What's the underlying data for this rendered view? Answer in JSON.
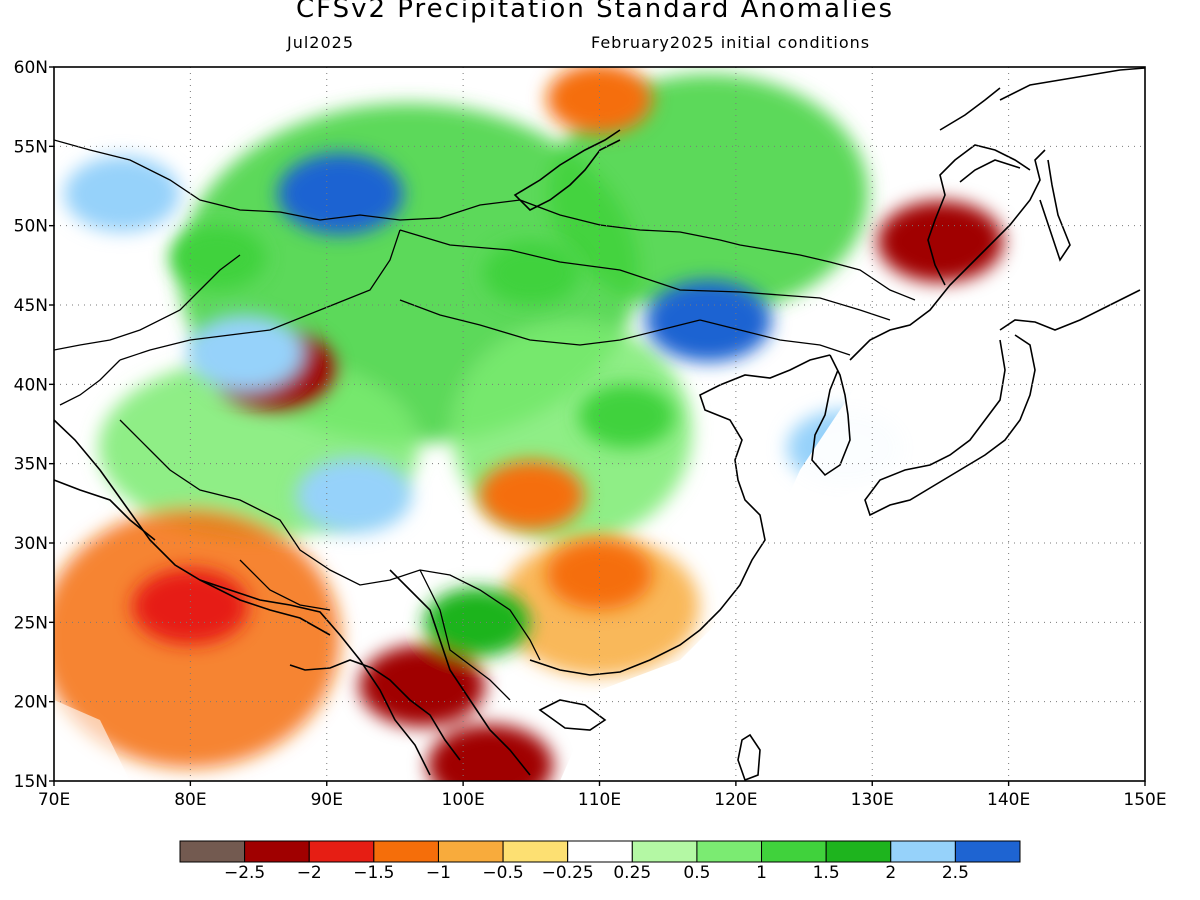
{
  "title": "CFSv2 Precipitation Standard Anomalies",
  "valid_month": "Jul2025",
  "initial_conditions": "February2025 initial conditions",
  "map": {
    "lon_ticks": [
      "70E",
      "80E",
      "90E",
      "100E",
      "110E",
      "120E",
      "130E",
      "140E",
      "150E"
    ],
    "lat_ticks": [
      "15N",
      "20N",
      "25N",
      "30N",
      "35N",
      "40N",
      "45N",
      "50N",
      "55N",
      "60N"
    ],
    "lon_range": [
      70,
      150
    ],
    "lat_range": [
      15,
      60
    ],
    "grid": "dotted"
  },
  "colorbar": {
    "labels": [
      "−2.5",
      "−2",
      "−1.5",
      "−1",
      "−0.5",
      "−0.25",
      "0.25",
      "0.5",
      "1",
      "1.5",
      "2",
      "2.5"
    ],
    "colors": [
      "#735a50",
      "#a00000",
      "#e61e14",
      "#f56e0a",
      "#f8ab3c",
      "#fde072",
      "#ffffff",
      "#b4f8a4",
      "#7beb72",
      "#40d23c",
      "#1eb41e",
      "#96d2fa",
      "#1e64d2"
    ]
  },
  "anomaly_regions": [
    {
      "name": "north-india-dry",
      "lon": 80,
      "lat": 26,
      "value": -2.0
    },
    {
      "name": "myanmar-dry",
      "lon": 97,
      "lat": 21,
      "value": -2.5
    },
    {
      "name": "indochina-dry",
      "lon": 102,
      "lat": 16,
      "value": -2.5
    },
    {
      "name": "south-china-dry",
      "lon": 110,
      "lat": 28,
      "value": -1.5
    },
    {
      "name": "sichuan-dry",
      "lon": 105,
      "lat": 33,
      "value": -1.5
    },
    {
      "name": "tarim-dry",
      "lon": 86,
      "lat": 41,
      "value": -2.5
    },
    {
      "name": "baikal-dry",
      "lon": 110,
      "lat": 58,
      "value": -1.5
    },
    {
      "name": "manchuria-dry",
      "lon": 135,
      "lat": 49,
      "value": -2.5
    },
    {
      "name": "mongolia-northeast-wet",
      "lon": 118,
      "lat": 44,
      "value": 2.5
    },
    {
      "name": "west-siberia-wet",
      "lon": 75,
      "lat": 52,
      "value": 2.0
    },
    {
      "name": "sayan-wet",
      "lon": 91,
      "lat": 52,
      "value": 2.5
    },
    {
      "name": "tibet-wet",
      "lon": 92,
      "lat": 33,
      "value": 2.0
    },
    {
      "name": "tianshan-wet",
      "lon": 84,
      "lat": 42,
      "value": 2.0
    },
    {
      "name": "korea-wet",
      "lon": 128,
      "lat": 36,
      "value": 2.0
    },
    {
      "name": "kazakhstan-wet",
      "lon": 82,
      "lat": 48,
      "value": 1.0
    },
    {
      "name": "mongolia-wet",
      "lon": 105,
      "lat": 47,
      "value": 1.0
    },
    {
      "name": "north-china-wet",
      "lon": 112,
      "lat": 38,
      "value": 1.0
    },
    {
      "name": "yunnan-wet",
      "lon": 101,
      "lat": 25,
      "value": 1.5
    }
  ]
}
